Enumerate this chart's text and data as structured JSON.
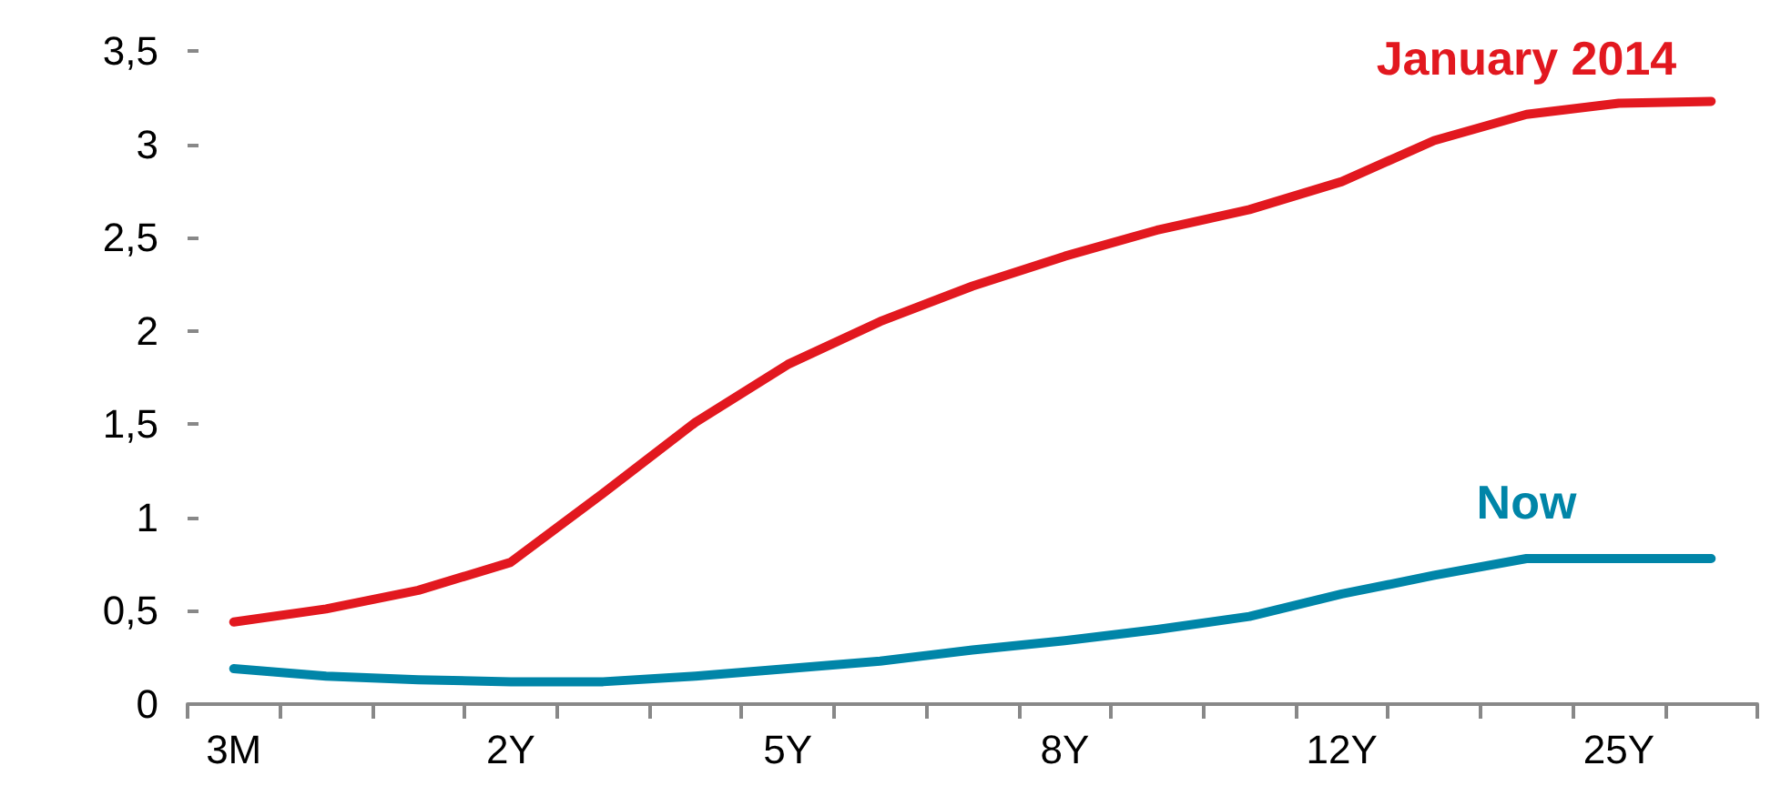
{
  "chart_data": {
    "type": "line",
    "categories": [
      "3M",
      null,
      null,
      "2Y",
      null,
      null,
      "5Y",
      null,
      null,
      "8Y",
      null,
      null,
      "12Y",
      null,
      null,
      "25Y",
      null
    ],
    "series": [
      {
        "name": "January 2014",
        "color": "#e2181f",
        "values": [
          0.44,
          0.51,
          0.61,
          0.76,
          1.13,
          1.51,
          1.82,
          2.05,
          2.24,
          2.4,
          2.54,
          2.65,
          2.8,
          3.02,
          3.16,
          3.22,
          3.23
        ]
      },
      {
        "name": "Now",
        "color": "#0085a8",
        "values": [
          0.19,
          0.15,
          0.13,
          0.12,
          0.12,
          0.15,
          0.19,
          0.23,
          0.29,
          0.34,
          0.4,
          0.47,
          0.59,
          0.69,
          0.78,
          0.78,
          0.78
        ]
      }
    ],
    "ylim": [
      0,
      3.5
    ],
    "yticks": [
      0,
      {
        "value": 0.5,
        "label": "0,5"
      },
      1,
      {
        "value": 1.5,
        "label": "1,5"
      },
      2,
      {
        "value": 2.5,
        "label": "2,5"
      },
      3,
      {
        "value": 3.5,
        "label": "3,5"
      }
    ],
    "grid": false,
    "legend": false,
    "marker": "none",
    "line_style": "solid"
  }
}
